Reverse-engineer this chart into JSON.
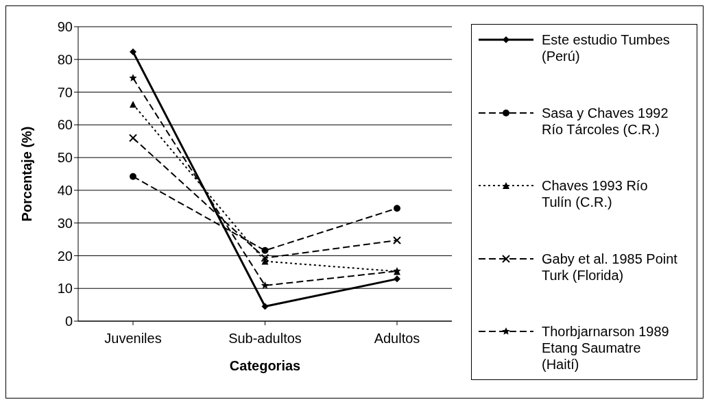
{
  "chart_data": {
    "type": "line",
    "xlabel": "Categorias",
    "ylabel": "Porcentaje (%)",
    "categories": [
      "Juveniles",
      "Sub-adultos",
      "Adultos"
    ],
    "ylim": [
      0,
      90
    ],
    "yticks": [
      0,
      10,
      20,
      30,
      40,
      50,
      60,
      70,
      80,
      90
    ],
    "grid": "y",
    "legend": "right",
    "series": [
      {
        "name": "Este estudio Tumbes (Perú)",
        "color": "#000000",
        "values": [
          82.3,
          4.5,
          12.9
        ],
        "marker": "diamond",
        "line_style": "solid"
      },
      {
        "name": "Sasa y Chaves 1992 Río Tárcoles (C.R.)",
        "color": "#000000",
        "values": [
          44.2,
          21.6,
          34.5
        ],
        "marker": "circle",
        "line_style": "dashed"
      },
      {
        "name": "Chaves 1993 Río Tulín (C.R.)",
        "color": "#000000",
        "values": [
          66.3,
          18.3,
          15.2
        ],
        "marker": "triangle",
        "line_style": "dotted"
      },
      {
        "name": "Gaby et al. 1985 Point Turk (Florida)",
        "color": "#000000",
        "values": [
          56,
          19.3,
          24.7
        ],
        "marker": "cross",
        "line_style": "dashed"
      },
      {
        "name": "Thorbjarnarson 1989 Etang Saumatre (Haití)",
        "color": "#000000",
        "values": [
          74.3,
          10.9,
          15.3
        ],
        "marker": "star",
        "line_style": "dashed"
      }
    ]
  }
}
